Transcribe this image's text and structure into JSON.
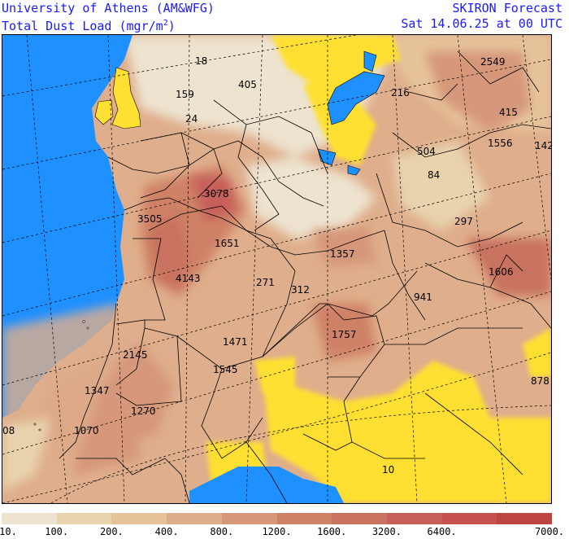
{
  "header": {
    "institution": "University of Athens (AM&WFG)",
    "product": "Total Dust Load (mgr/m",
    "product_sup": "2",
    "product_close": ")",
    "model": "SKIRON Forecast",
    "valid_time": "Sat 14.06.25 at 00 UTC"
  },
  "colors": {
    "sea": "#1e90ff",
    "low_dust": "#ffe033",
    "lake": "#1e90ff"
  },
  "map_labels": [
    {
      "id": "l18",
      "text": "18"
    },
    {
      "id": "l405",
      "text": "405"
    },
    {
      "id": "l159",
      "text": "159"
    },
    {
      "id": "l24",
      "text": "24"
    },
    {
      "id": "l216",
      "text": "216"
    },
    {
      "id": "l2549",
      "text": "2549"
    },
    {
      "id": "l415",
      "text": "415"
    },
    {
      "id": "l1556",
      "text": "1556"
    },
    {
      "id": "l142",
      "text": "142"
    },
    {
      "id": "l504",
      "text": "504"
    },
    {
      "id": "l84",
      "text": "84"
    },
    {
      "id": "l3078",
      "text": "3078"
    },
    {
      "id": "l3505",
      "text": "3505"
    },
    {
      "id": "l297",
      "text": "297"
    },
    {
      "id": "l1651",
      "text": "1651"
    },
    {
      "id": "l1357",
      "text": "1357"
    },
    {
      "id": "l1606",
      "text": "1606"
    },
    {
      "id": "l4143",
      "text": "4143"
    },
    {
      "id": "l271",
      "text": "271"
    },
    {
      "id": "l312",
      "text": "312"
    },
    {
      "id": "l941",
      "text": "941"
    },
    {
      "id": "l1471",
      "text": "1471"
    },
    {
      "id": "l1757",
      "text": "1757"
    },
    {
      "id": "l2145",
      "text": "2145"
    },
    {
      "id": "l1545",
      "text": "1545"
    },
    {
      "id": "l878",
      "text": "878"
    },
    {
      "id": "l1347",
      "text": "1347"
    },
    {
      "id": "l1270",
      "text": "1270"
    },
    {
      "id": "l08",
      "text": "08"
    },
    {
      "id": "l1070",
      "text": "1070"
    },
    {
      "id": "l10",
      "text": "10"
    }
  ],
  "legend": {
    "colors": [
      "#ede3cf",
      "#e8d3ad",
      "#e6c39b",
      "#dfad8c",
      "#d6977a",
      "#cf8166",
      "#c8725f",
      "#c7605a",
      "#c55250",
      "#bd4540"
    ],
    "ticks": [
      "10.",
      "100.",
      "200.",
      "400.",
      "800.",
      "1200.",
      "1600.",
      "3200.",
      "6400.",
      "7000."
    ]
  }
}
